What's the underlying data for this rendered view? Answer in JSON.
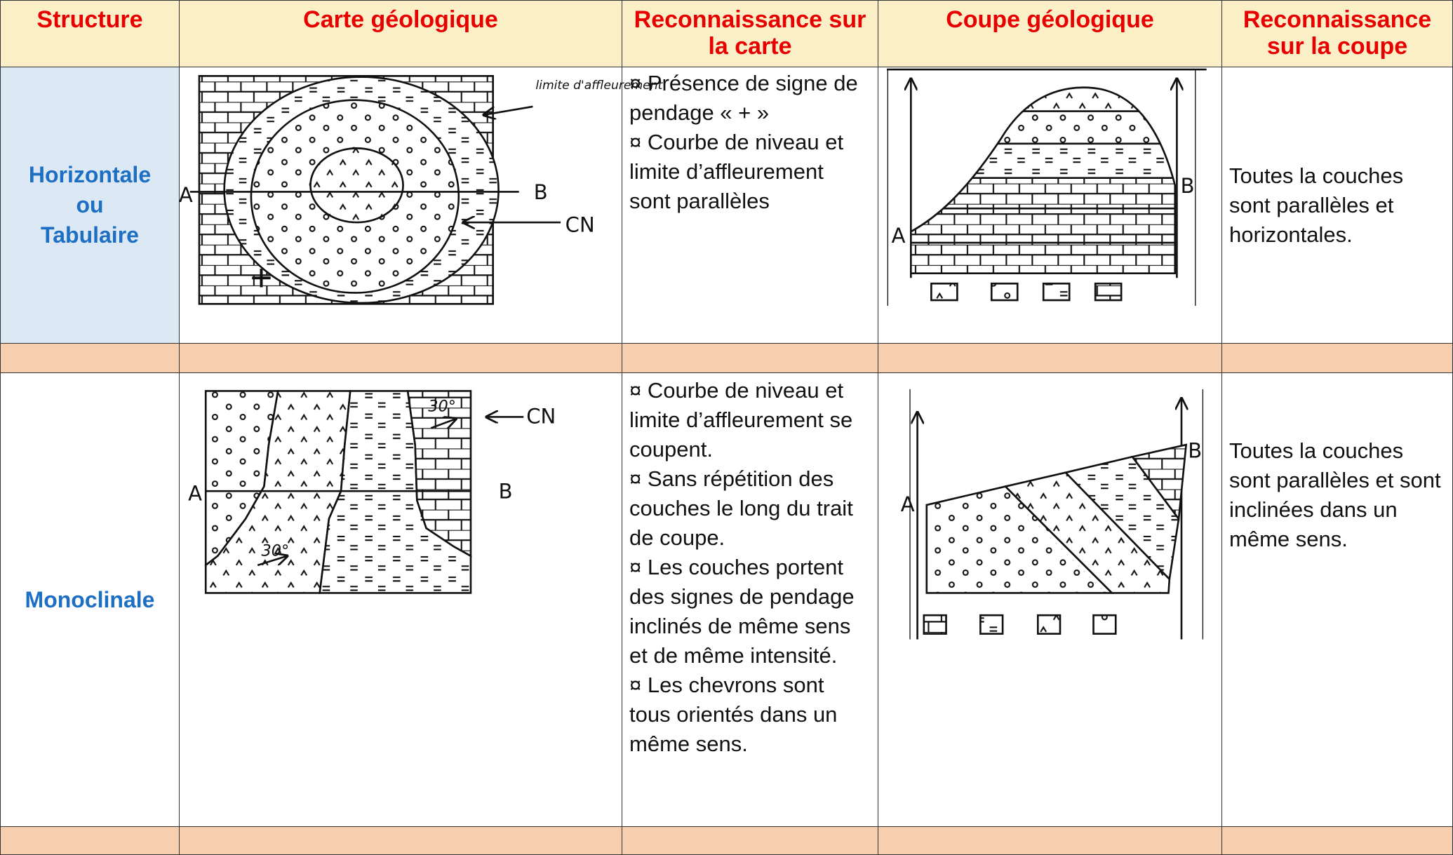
{
  "table": {
    "header": [
      "Structure",
      "Carte géologique",
      "Reconnaissance sur la carte",
      "Coupe géologique",
      "Reconnaissance sur la coupe"
    ],
    "rows": [
      {
        "structure": [
          "Horizontale",
          "ou",
          "Tabulaire"
        ],
        "map_labels": {
          "a": "A",
          "b": "B",
          "cn": "CN",
          "limit": "limite d'affleurement"
        },
        "map_recognition": [
          "¤ Présence de signe de pendage « + »",
          "¤ Courbe de niveau et limite d’affleurement sont parallèles"
        ],
        "section_labels": {
          "a": "A",
          "b": "B"
        },
        "section_recognition": "Toutes la couches sont parallèles et horizontales."
      },
      {
        "structure": [
          "Monoclinale"
        ],
        "map_labels": {
          "a": "A",
          "b": "B",
          "cn": "CN",
          "dip1": "30°",
          "dip2": "30°"
        },
        "map_recognition": [
          "¤ Courbe de niveau et limite d’affleurement se coupent.",
          "¤ Sans répétition des couches le long du trait de coupe.",
          "¤ Les couches portent des signes de pendage inclinés de même sens et de même intensité.",
          "¤ Les chevrons sont tous orientés dans un même sens."
        ],
        "section_labels": {
          "a": "A",
          "b": "B"
        },
        "section_recognition": "Toutes la couches sont parallèles et sont inclinées dans un même sens."
      }
    ]
  }
}
